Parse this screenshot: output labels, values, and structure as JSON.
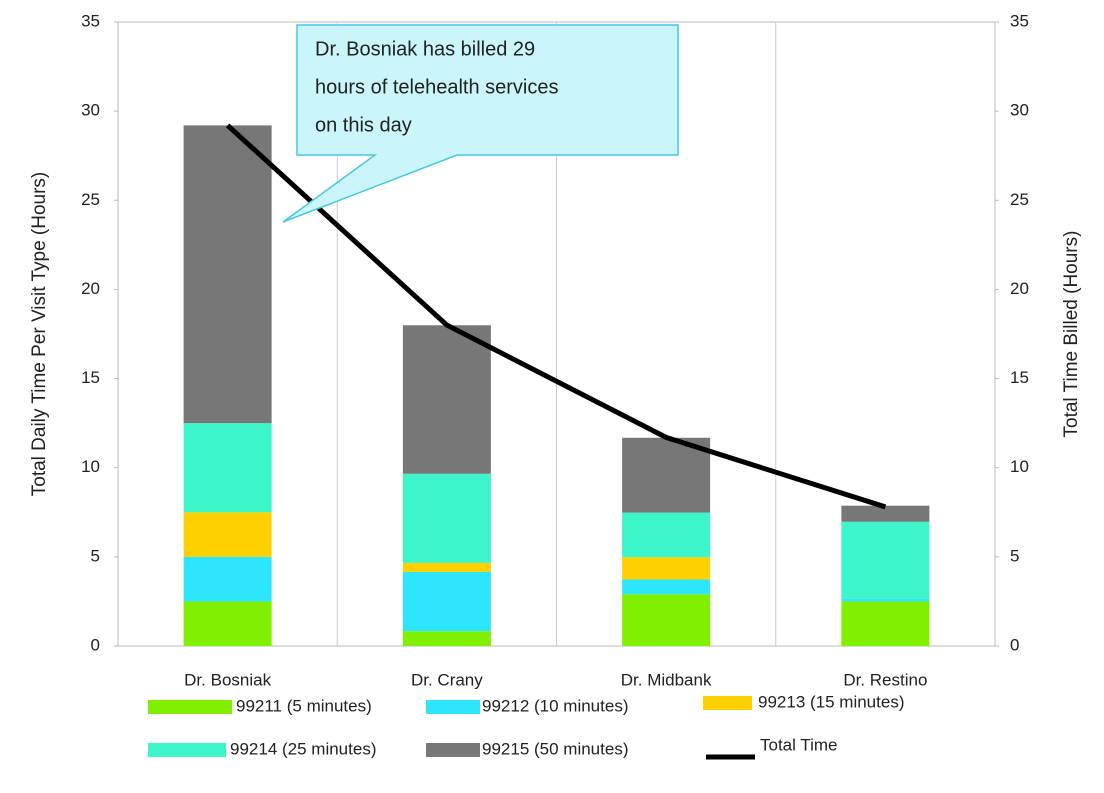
{
  "chart_data": {
    "type": "bar",
    "stacked": true,
    "categories": [
      "Dr. Bosniak",
      "Dr. Crany",
      "Dr. Midbank",
      "Dr. Restino"
    ],
    "series": [
      {
        "name": "99211 (5 minutes)",
        "color": "#80ef00",
        "values": [
          2.5,
          0.83,
          2.9,
          2.5
        ]
      },
      {
        "name": "99212 (10 minutes)",
        "color": "#2ee6fb",
        "values": [
          2.5,
          3.33,
          0.83,
          0.17
        ]
      },
      {
        "name": "99213 (15 minutes)",
        "color": "#ffd000",
        "values": [
          2.5,
          0.5,
          1.25,
          0
        ]
      },
      {
        "name": "99214 (25 minutes)",
        "color": "#3cf5c8",
        "values": [
          5,
          5,
          2.5,
          4.3
        ]
      },
      {
        "name": "99215 (50 minutes)",
        "color": "#777777",
        "values": [
          16.7,
          8.33,
          4.2,
          0.9
        ]
      },
      {
        "name": "Total Time",
        "type": "line",
        "axis": "y2",
        "color": "#000000",
        "values": [
          29.2,
          18,
          11.7,
          7.8
        ]
      }
    ],
    "y_label": "Total Daily Time Per Visit Type (Hours)",
    "y2_label": "Total Time Billed (Hours)",
    "ylim": [
      0,
      35
    ],
    "yticks": [
      0,
      5,
      10,
      15,
      20,
      25,
      30,
      35
    ],
    "y2lim": [
      0,
      35
    ],
    "y2ticks": [
      0,
      5,
      10,
      15,
      20,
      25,
      30,
      35
    ],
    "grid": "x",
    "annotation": [
      "Dr. Bosniak has billed 29",
      "hours of telehealth services",
      "on this day"
    ]
  }
}
